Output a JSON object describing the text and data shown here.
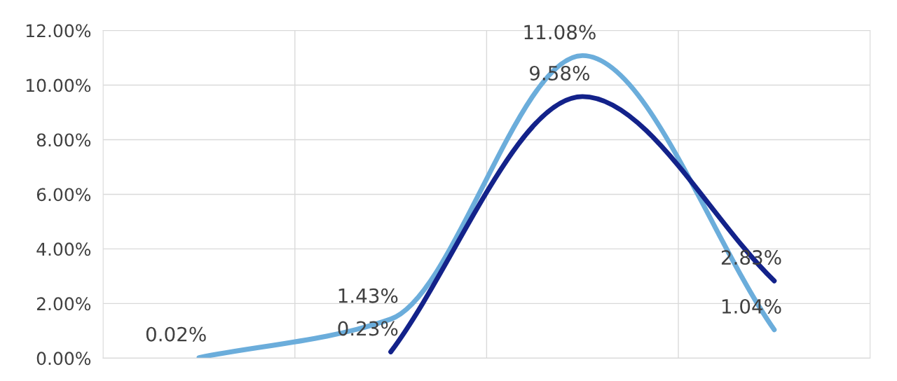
{
  "chart_data": {
    "type": "line",
    "categories": [
      null,
      null,
      null,
      null
    ],
    "series": [
      {
        "color": "#6baddb",
        "values": [
          0.02,
          1.43,
          11.08,
          1.04
        ],
        "value_labels": [
          "0.02%",
          "1.43%",
          "11.08%",
          "1.04%"
        ]
      },
      {
        "color": "#13228a",
        "values": [
          null,
          0.23,
          9.58,
          2.83
        ],
        "value_labels": [
          null,
          "0.23%",
          "9.58%",
          "2.83%"
        ]
      }
    ],
    "ylim": [
      0,
      12
    ],
    "yticks": [
      {
        "value": 0,
        "label": "0.00%"
      },
      {
        "value": 2,
        "label": "2.00%"
      },
      {
        "value": 4,
        "label": "4.00%"
      },
      {
        "value": 6,
        "label": "6.00%"
      },
      {
        "value": 8,
        "label": "8.00%"
      },
      {
        "value": 10,
        "label": "10.00%"
      },
      {
        "value": 12,
        "label": "12.00%"
      }
    ],
    "grid": true,
    "line_style": "solid",
    "marker": "none"
  }
}
